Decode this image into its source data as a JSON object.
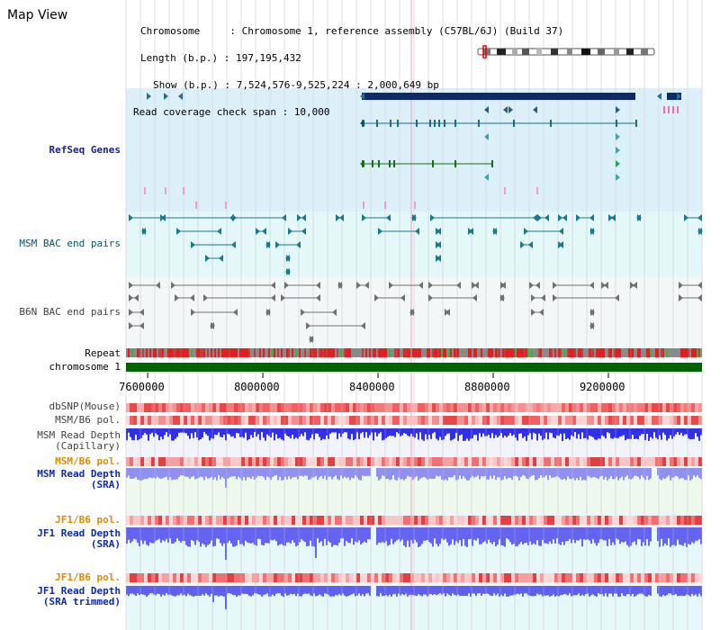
{
  "app": {
    "title": "Map View"
  },
  "info": {
    "chromosome_line": "Chromosome     : Chromosome 1, reference assembly (C57BL/6J) (Build 37)",
    "length_line": "Length (b.p.) : 197,195,432",
    "show_line": "Show (b.p.) : 7,524,576-9,525,224 : 2,000,649 bp",
    "coverage_line": "Read coverage check span : 10,000"
  },
  "tracks": {
    "refseq": "RefSeq Genes",
    "msm_bac": "MSM BAC end pairs",
    "b6n_bac": "B6N BAC end pairs",
    "repeat": "Repeat",
    "chromosome": "chromosome 1",
    "dbsnp": "dbSNP(Mouse)",
    "msm_pol_1": "MSM/B6 pol.",
    "msm_read_cap": "MSM Read Depth\n(Capillary)",
    "msm_pol_2": "MSM/B6 pol.",
    "msm_read_sra": "MSM Read Depth\n(SRA)",
    "jf1_pol_1": "JF1/B6 pol.",
    "jf1_read_sra": "JF1 Read Depth\n(SRA)",
    "jf1_pol_2": "JF1/B6 pol.",
    "jf1_read_trim": "JF1 Read Depth\n(SRA trimmed)"
  },
  "axis": {
    "ticks": [
      "7600000",
      "8000000",
      "8400000",
      "8800000",
      "9200000"
    ],
    "tick_values": [
      7600000,
      8000000,
      8400000,
      8800000,
      9200000
    ],
    "range_start": 7524576,
    "range_end": 9525224
  },
  "colors": {
    "refseq_bg": "#dcf0fa",
    "bac_bg": "#e4f7f9",
    "b6n_bg": "#f2f6f6",
    "chrom_green": "#006400",
    "gene_navy": "#0d2a6a",
    "depth_blue": "#4a4af0",
    "depth_light": "#9898f0",
    "pol_red": "#f06060"
  }
}
